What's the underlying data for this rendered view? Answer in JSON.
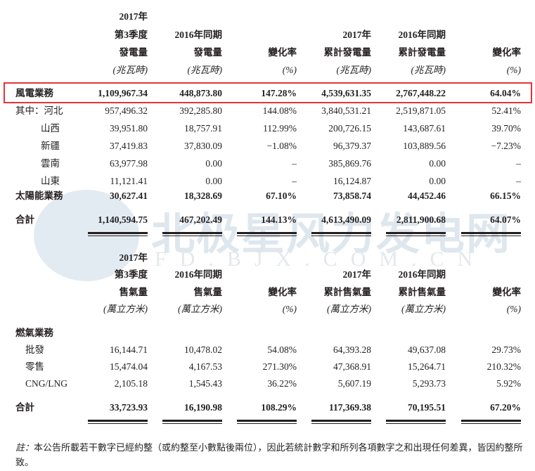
{
  "watermark": {
    "cn": "北极星风力发电网",
    "url": "FD.BJX.COM.CN"
  },
  "power_table": {
    "headers": [
      [
        "2017年",
        "第3季度",
        "發電量",
        "(兆瓦時)"
      ],
      [
        "",
        "2016年同期",
        "發電量",
        "(兆瓦時)"
      ],
      [
        "",
        "",
        "變化率",
        "(%)"
      ],
      [
        "",
        "2017年",
        "累計發電量",
        "(兆瓦時)"
      ],
      [
        "",
        "2016年同期",
        "累計發電量",
        "(兆瓦時)"
      ],
      [
        "",
        "",
        "變化率",
        "(%)"
      ]
    ],
    "rows": [
      {
        "label": "風電業務",
        "bold": true,
        "highlighted": true,
        "values": [
          "1,109,967.34",
          "448,873.80",
          "147.28%",
          "4,539,631.35",
          "2,767,448.22",
          "64.04%"
        ]
      },
      {
        "label": "其中：河北",
        "values": [
          "957,496.32",
          "392,285.80",
          "144.08%",
          "3,840,531.21",
          "2,519,871.05",
          "52.41%"
        ]
      },
      {
        "label": "山西",
        "indent": true,
        "values": [
          "39,951.80",
          "18,757.91",
          "112.99%",
          "200,726.15",
          "143,687.61",
          "39.70%"
        ]
      },
      {
        "label": "新疆",
        "indent": true,
        "values": [
          "37,419.83",
          "37,830.09",
          "−1.08%",
          "96,379.37",
          "103,889.56",
          "−7.23%"
        ]
      },
      {
        "label": "雲南",
        "indent": true,
        "values": [
          "63,977.98",
          "0.00",
          "–",
          "385,869.76",
          "0.00",
          "–"
        ]
      },
      {
        "label": "山東",
        "indent": true,
        "values": [
          "11,121.41",
          "0.00",
          "–",
          "16,124.87",
          "0.00",
          "–"
        ]
      },
      {
        "label": "太陽能業務",
        "bold": true,
        "values": [
          "30,627.41",
          "18,328.69",
          "67.10%",
          "73,858.74",
          "44,452.46",
          "66.15%"
        ]
      },
      {
        "label": "合計",
        "bold": true,
        "values": [
          "1,140,594.75",
          "467,202.49",
          "144.13%",
          "4,613,490.09",
          "2,811,900.68",
          "64.07%"
        ]
      }
    ]
  },
  "gas_table": {
    "headers": [
      [
        "2017年",
        "第3季度",
        "售氣量",
        "(萬立方米)"
      ],
      [
        "",
        "2016年同期",
        "售氣量",
        "(萬立方米)"
      ],
      [
        "",
        "",
        "變化率",
        "(%)"
      ],
      [
        "",
        "2017年",
        "累計售氣量",
        "(萬立方米)"
      ],
      [
        "",
        "2016年同期",
        "累計售氣量",
        "(萬立方米)"
      ],
      [
        "",
        "",
        "變化率",
        "(%)"
      ]
    ],
    "section_label": "燃氣業務",
    "rows": [
      {
        "label": "批發",
        "values": [
          "16,144.71",
          "10,478.02",
          "54.08%",
          "64,393.28",
          "49,637.08",
          "29.73%"
        ]
      },
      {
        "label": "零售",
        "values": [
          "15,474.04",
          "4,167.53",
          "271.30%",
          "47,368.91",
          "15,264.71",
          "210.32%"
        ]
      },
      {
        "label": "CNG/LNG",
        "values": [
          "2,105.18",
          "1,545.43",
          "36.22%",
          "5,607.19",
          "5,293.73",
          "5.92%"
        ]
      },
      {
        "label": "合計",
        "bold": true,
        "values": [
          "33,723.93",
          "16,190.98",
          "108.29%",
          "117,369.38",
          "70,195.51",
          "67.20%"
        ]
      }
    ]
  },
  "note": {
    "prefix": "註：",
    "text": "本公告所載若干數字已經約整（或約整至小數點後兩位），因此若統計數字和所列各項數字之和出現任何差異，皆因約整所致。"
  }
}
